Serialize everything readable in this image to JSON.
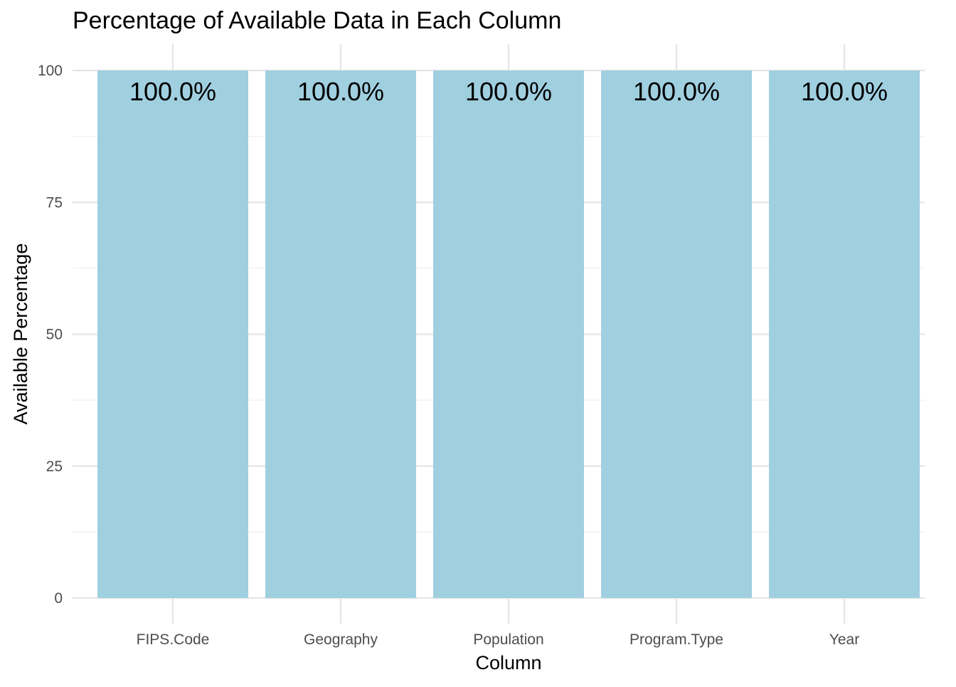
{
  "chart_data": {
    "type": "bar",
    "title": "Percentage of Available Data in Each Column",
    "xlabel": "Column",
    "ylabel": "Available Percentage",
    "categories": [
      "FIPS.Code",
      "Geography",
      "Population",
      "Program.Type",
      "Year"
    ],
    "values": [
      100,
      100,
      100,
      100,
      100
    ],
    "data_labels": [
      "100.0%",
      "100.0%",
      "100.0%",
      "100.0%",
      "100.0%"
    ],
    "ylim": [
      0,
      100
    ],
    "y_ticks": [
      0,
      25,
      50,
      75,
      100
    ],
    "y_tick_labels": [
      "0",
      "25",
      "50",
      "75",
      "100"
    ],
    "grid": true,
    "legend": "none",
    "bar_color": "#a0cfe0"
  }
}
